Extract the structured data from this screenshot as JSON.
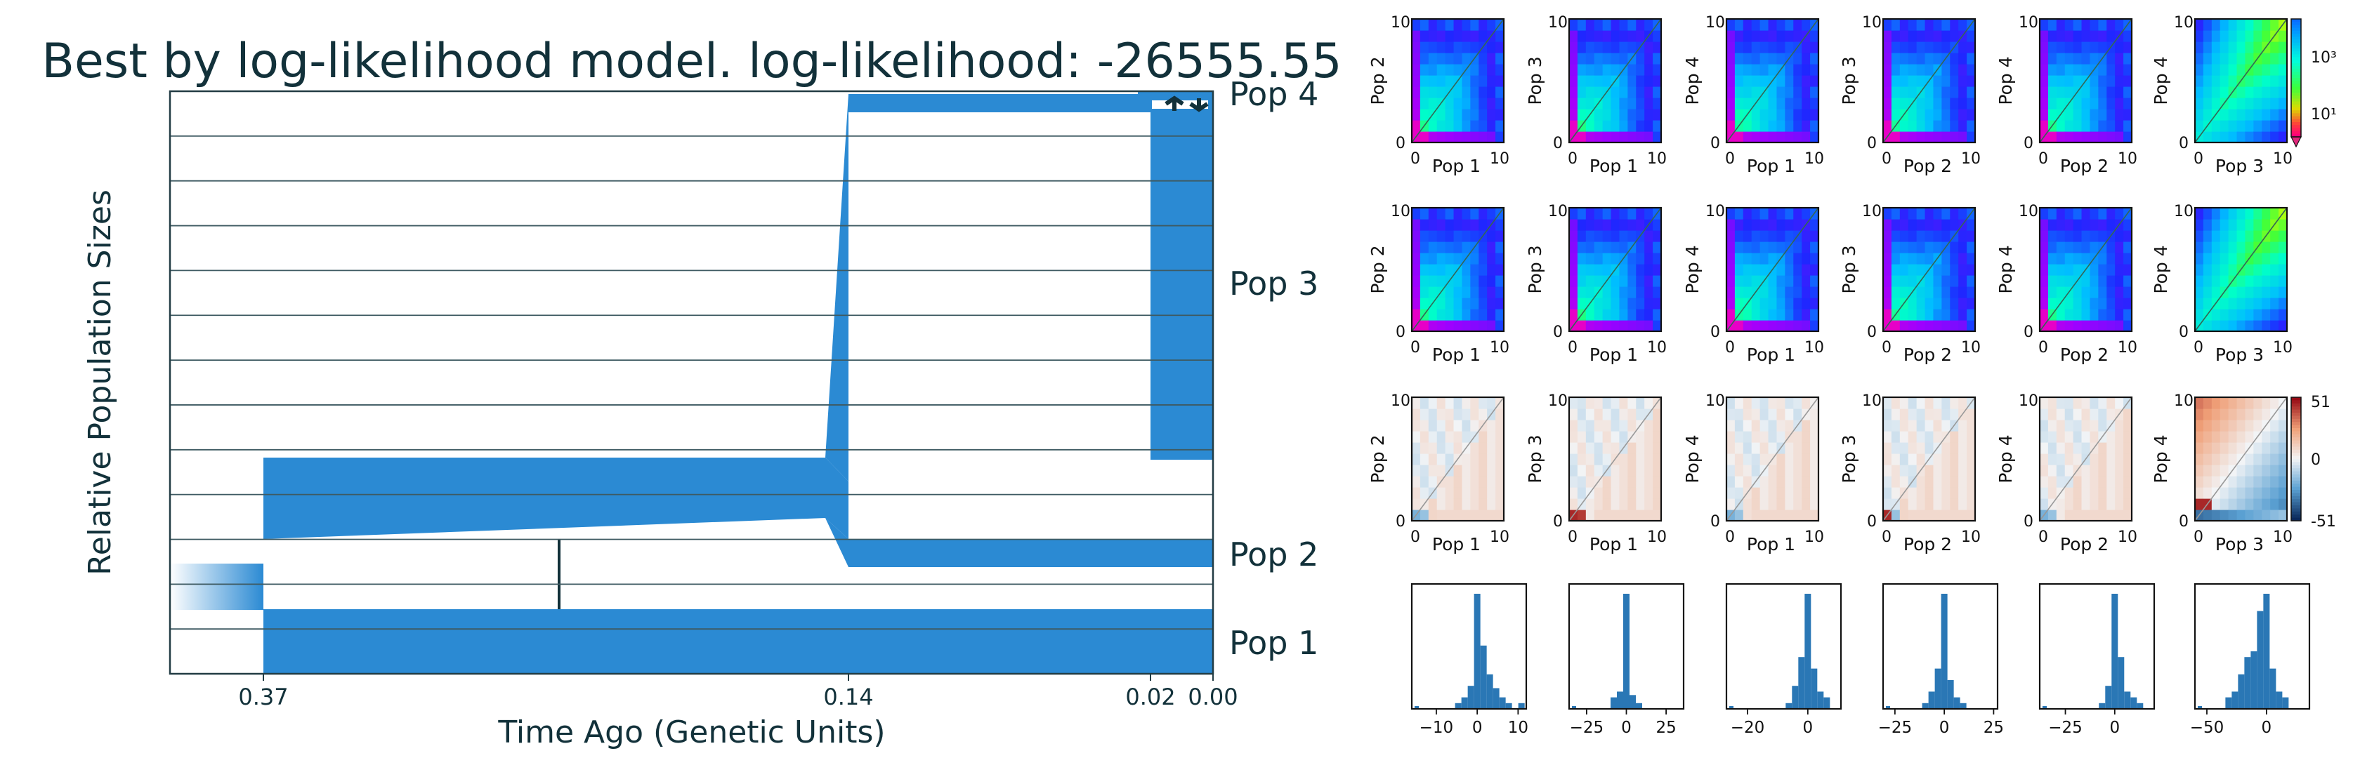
{
  "chart_data": [
    {
      "type": "area",
      "title": "Best by log-likelihood model. log-likelihood: -26555.55",
      "xlabel": "Time Ago (Genetic Units)",
      "ylabel": "Relative Population Sizes",
      "x_ticks": [
        "0.37",
        "0.14",
        "0.02",
        "0.00"
      ],
      "x_tick_values": [
        0.37,
        0.14,
        0.02,
        0.0
      ],
      "populations": [
        "Pop 1",
        "Pop 2",
        "Pop 3",
        "Pop 4"
      ],
      "events": [
        {
          "kind": "split",
          "time": 0.37
        },
        {
          "kind": "migration-pulse",
          "time": 0.25
        },
        {
          "kind": "split",
          "time": 0.14
        },
        {
          "kind": "split",
          "time": 0.02
        }
      ],
      "colors": {
        "population": "#2b8ad3",
        "axis": "#223c44",
        "title": "#12313a"
      }
    },
    {
      "type": "heatmap",
      "label": "SFS panels (row 1, row 2)",
      "axis_ticks": [
        "0",
        "10"
      ],
      "panels": [
        {
          "xlabel": "Pop 1",
          "ylabel": "Pop 2"
        },
        {
          "xlabel": "Pop 1",
          "ylabel": "Pop 3"
        },
        {
          "xlabel": "Pop 1",
          "ylabel": "Pop 4"
        },
        {
          "xlabel": "Pop 2",
          "ylabel": "Pop 3"
        },
        {
          "xlabel": "Pop 2",
          "ylabel": "Pop 4"
        },
        {
          "xlabel": "Pop 3",
          "ylabel": "Pop 4"
        }
      ],
      "colorbar": {
        "scale": "log",
        "tick_labels": [
          "10³",
          "10¹"
        ]
      }
    },
    {
      "type": "heatmap",
      "label": "Residual panels (row 3)",
      "axis_ticks": [
        "0",
        "10"
      ],
      "panels": [
        {
          "xlabel": "Pop 1",
          "ylabel": "Pop 2"
        },
        {
          "xlabel": "Pop 1",
          "ylabel": "Pop 3"
        },
        {
          "xlabel": "Pop 1",
          "ylabel": "Pop 4"
        },
        {
          "xlabel": "Pop 2",
          "ylabel": "Pop 3"
        },
        {
          "xlabel": "Pop 2",
          "ylabel": "Pop 4"
        },
        {
          "xlabel": "Pop 3",
          "ylabel": "Pop 4"
        }
      ],
      "colorbar": {
        "tick_labels": [
          "51",
          "0",
          "-51"
        ],
        "range": [
          -51,
          51
        ]
      }
    },
    {
      "type": "bar",
      "label": "Residual histograms (row 4)",
      "panels": [
        {
          "ticks": [
            -10,
            0,
            10
          ],
          "range": [
            -16,
            12
          ]
        },
        {
          "ticks": [
            -25,
            0,
            25
          ],
          "range": [
            -36,
            36
          ]
        },
        {
          "ticks": [
            -20,
            0
          ],
          "range": [
            -27,
            11
          ]
        },
        {
          "ticks": [
            -25,
            0,
            25
          ],
          "range": [
            -31,
            27
          ]
        },
        {
          "ticks": [
            -25,
            0
          ],
          "range": [
            -38,
            20
          ]
        },
        {
          "ticks": [
            -50,
            0
          ],
          "range": [
            -60,
            36
          ]
        }
      ],
      "color": "#2a77b5"
    }
  ]
}
